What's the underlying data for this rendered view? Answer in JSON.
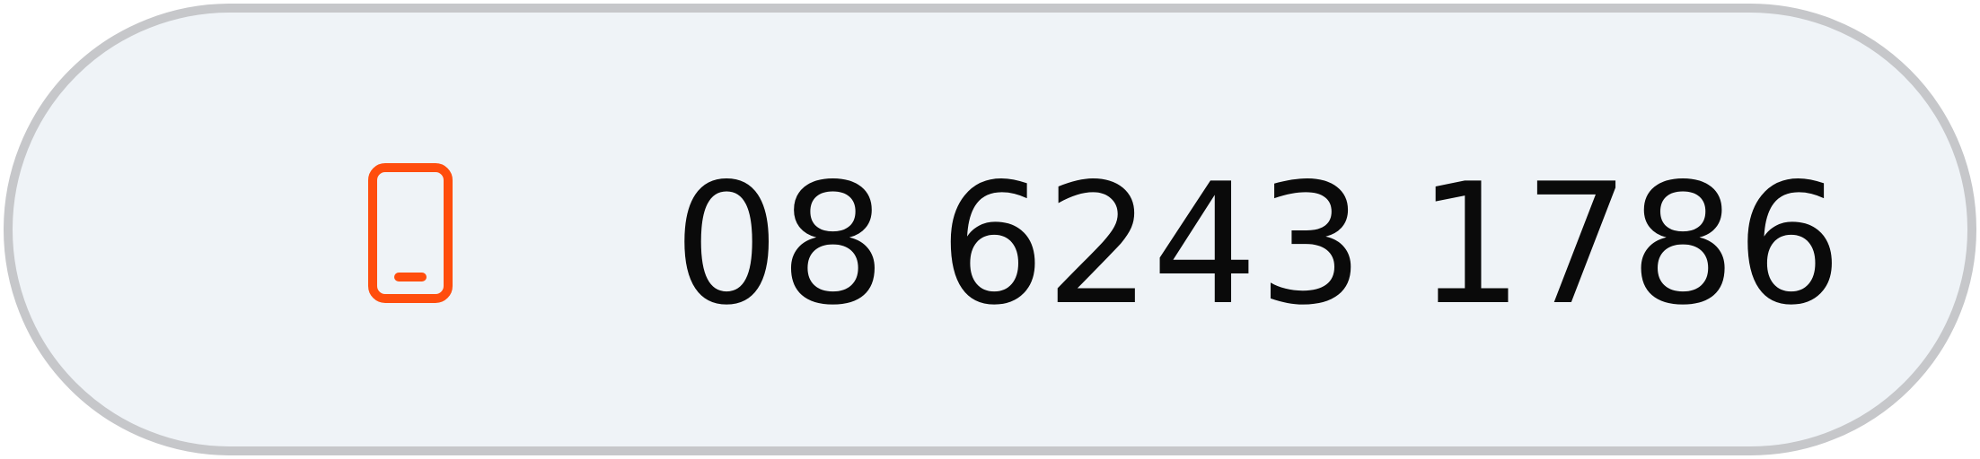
{
  "contact": {
    "phone_icon": "phone-icon",
    "phone_number": "08 6243 1786",
    "icon_color": "#ff4d0d",
    "background_color": "#eff3f7",
    "border_color": "#c6c7ca"
  }
}
